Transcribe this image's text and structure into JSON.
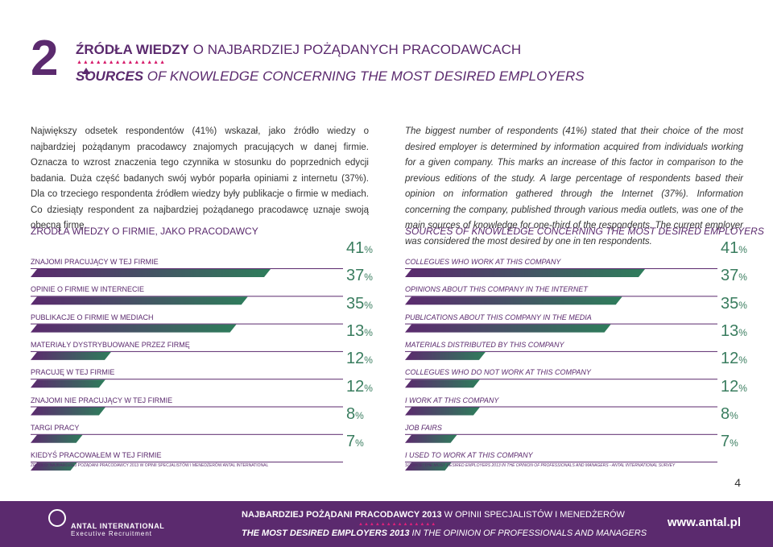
{
  "header": {
    "number": "2",
    "title_pl_bold": "ŹRÓDŁA WIEDZY",
    "title_pl_rest": " O NAJBARDZIEJ POŻĄDANYCH PRACODAWCACH",
    "title_en_bold": "SOURCES",
    "title_en_rest": " OF KNOWLEDGE CONCERNING THE MOST DESIRED EMPLOYERS"
  },
  "intro": {
    "pl": "Największy odsetek respondentów (41%) wskazał, jako źródło wiedzy o najbardziej pożądanym pracodawcy znajomych pracujących w danej firmie. Oznacza to wzrost znaczenia tego czynnika w stosunku do poprzednich edycji badania. Duża część badanych swój wybór poparła opiniami z internetu (37%). Dla co trzeciego respondenta źródłem wiedzy były publikacje o firmie w mediach. Co dziesiąty respondent za najbardziej pożądanego pracodawcę uznaje swoją obecną firmę.",
    "en": "The biggest number of respondents (41%) stated that their choice of the most desired employer is determined by information acquired from individuals working for a given company. This marks an increase of this factor in comparison to the previous editions of the study. A large percentage of respondents based their opinion on information gathered through the Internet (37%). Information concerning the company, published through various media outlets, was one of the main sources of knowledge for one-third of the respondents. The current employer was considered the most desired by one in ten respondents."
  },
  "colors": {
    "purple": "#5b2a6e",
    "green": "#2e7d5b",
    "pink": "#d61c6b"
  },
  "chart_data": [
    {
      "type": "bar",
      "orientation": "horizontal",
      "title": "ŹRÓDŁA WIEDZY O FIRMIE, JAKO PRACODAWCY",
      "categories": [
        "ZNAJOMI PRACUJĄCY W TEJ FIRMIE",
        "OPINIE O FIRMIE W INTERNECIE",
        "PUBLIKACJE O FIRMIE W MEDIACH",
        "MATERIAŁY DYSTRYBUOWANE PRZEZ FIRMĘ",
        "PRACUJĘ W TEJ FIRMIE",
        "ZNAJOMI NIE PRACUJĄCY W TEJ FIRMIE",
        "TARGI PRACY",
        "KIEDYŚ PRACOWAŁEM W TEJ FIRMIE"
      ],
      "values": [
        41,
        37,
        35,
        13,
        12,
        12,
        8,
        7
      ],
      "value_labels": [
        "41",
        "37",
        "35",
        "13",
        "12",
        "12",
        "8",
        "7"
      ],
      "unit": "%",
      "source": "ŹRÓDŁO: NAJBARDZIEJ POŻĄDANI PRACODAWCY 2013 W OPINII SPECJALISTÓW I MENEDŻERÓW  ANTAL INTERNATIONAL"
    },
    {
      "type": "bar",
      "orientation": "horizontal",
      "title": "SOURCES OF KNOWLEDGE CONCERNING THE MOST DESIRED EMPLOYERS",
      "categories": [
        "COLLEGUES WHO WORK AT THIS COMPANY",
        "OPINIONS ABOUT THIS COMPANY IN THE INTERNET",
        "PUBLICATIONS ABOUT THIS COMPANY IN THE MEDIA",
        "MATERIALS DISTRIBUTED BY THIS COMPANY",
        "COLLEGUES WHO DO NOT WORK AT THIS COMPANY",
        "I WORK AT THIS COMPANY",
        "JOB FAIRS",
        "I USED TO WORK AT THIS COMPANY"
      ],
      "values": [
        41,
        37,
        35,
        13,
        12,
        12,
        8,
        7
      ],
      "value_labels": [
        "41",
        "37",
        "35",
        "13",
        "12",
        "12",
        "8",
        "7"
      ],
      "unit": "%",
      "source": "SOURCE: THE MOST DESIRED EMPLOYERS 2013 IN THE OPINION OF PROFESSIONALS AND MANAGERS - ANTAL INTERNATIONAL SURVEY"
    }
  ],
  "page_number": "4",
  "footer": {
    "brand": "ANTAL INTERNATIONAL",
    "brand_sub": "Executive Recruitment",
    "pl_bold": "NAJBARDZIEJ POŻĄDANI PRACODAWCY 2013",
    "pl_rest": " W OPINII SPECJALISTÓW I MENEDŻERÓW",
    "en_bold": "THE MOST DESIRED EMPLOYERS 2013",
    "en_rest": " IN THE OPINION OF PROFESSIONALS AND MANAGERS",
    "url": "www.antal.pl"
  }
}
